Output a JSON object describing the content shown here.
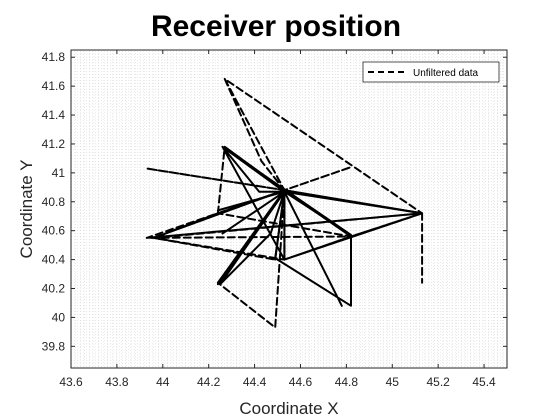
{
  "chart_data": {
    "type": "line",
    "title": "Receiver position",
    "xlabel": "Coordinate X",
    "ylabel": "Coordinate Y",
    "xlim": [
      43.6,
      45.5
    ],
    "ylim": [
      39.65,
      41.85
    ],
    "xticks": [
      43.6,
      43.8,
      44,
      44.2,
      44.4,
      44.6,
      44.8,
      45,
      45.2,
      45.4
    ],
    "xtick_labels": [
      "43.6",
      "43.8",
      "44",
      "44.2",
      "44.4",
      "44.6",
      "44.8",
      "45",
      "45.2",
      "45.4"
    ],
    "yticks": [
      39.8,
      40,
      40.2,
      40.4,
      40.6,
      40.8,
      41,
      41.2,
      41.4,
      41.6,
      41.8
    ],
    "ytick_labels": [
      "39.8",
      "40",
      "40.2",
      "40.4",
      "40.6",
      "40.8",
      "41",
      "41.2",
      "41.4",
      "41.6",
      "41.8"
    ],
    "grid": "minor dotted",
    "legend_position": "top-right",
    "line_color": "#000000",
    "series": [
      {
        "name": "Unfiltered data",
        "style": "dashed",
        "x": [
          44.27,
          44.43,
          44.53,
          45.13,
          44.27,
          44.53,
          44.24,
          44.53,
          43.93,
          44.53,
          44.24,
          44.53,
          45.13,
          43.93,
          44.82,
          44.53,
          44.49,
          44.24,
          44.53,
          45.13,
          44.53,
          44.82,
          43.93,
          45.13,
          44.53,
          44.27,
          44.24,
          44.53,
          44.53,
          44.53,
          43.96,
          44.53,
          44.82,
          44.53,
          44.27,
          44.53,
          45.13,
          44.82,
          44.53,
          45.13,
          44.53,
          44.82,
          45.13,
          43.96,
          44.49,
          44.53,
          44.82,
          45.13,
          45.13,
          44.53,
          44.49,
          44.53,
          44.82,
          44.24,
          43.96,
          44.53,
          45.13,
          45.13,
          45.13,
          45.13
        ],
        "y": [
          41.65,
          41.08,
          40.88,
          40.72,
          41.65,
          40.88,
          40.72,
          40.88,
          41.03,
          40.88,
          40.24,
          40.88,
          40.72,
          40.55,
          41.04,
          40.88,
          39.93,
          40.24,
          40.88,
          40.72,
          40.88,
          40.56,
          40.55,
          40.72,
          40.88,
          41.18,
          40.72,
          40.88,
          40.4,
          40.88,
          40.55,
          40.4,
          40.56,
          40.88,
          41.18,
          40.88,
          40.72,
          40.56,
          40.4,
          40.72,
          40.4,
          40.56,
          40.72,
          40.55,
          40.4,
          40.88,
          40.56,
          40.72,
          40.72,
          40.88,
          40.4,
          40.88,
          40.56,
          40.72,
          40.55,
          40.88,
          40.72,
          40.72,
          40.72,
          40.24
        ]
      },
      {
        "style": "solid",
        "x": [
          44.26,
          44.53,
          44.26,
          44.42,
          44.53,
          44.47,
          44.25,
          44.53,
          44.49,
          44.53,
          44.82,
          44.53,
          45.13,
          44.53,
          44.82,
          44.53,
          44.78,
          44.53,
          44.24,
          44.53,
          44.53,
          44.53,
          44.26,
          44.82,
          44.82,
          44.49,
          44.53,
          44.26,
          44.53,
          44.53,
          44.24,
          44.53,
          44.82
        ],
        "y": [
          41.18,
          40.87,
          41.18,
          40.87,
          40.87,
          40.58,
          40.23,
          40.87,
          40.41,
          40.87,
          40.57,
          40.87,
          40.72,
          40.87,
          40.57,
          40.87,
          40.08,
          40.87,
          40.74,
          40.87,
          40.87,
          40.4,
          41.18,
          40.57,
          40.08,
          40.41,
          40.87,
          40.58,
          40.87,
          40.87,
          40.23,
          40.87,
          40.57
        ]
      }
    ]
  }
}
